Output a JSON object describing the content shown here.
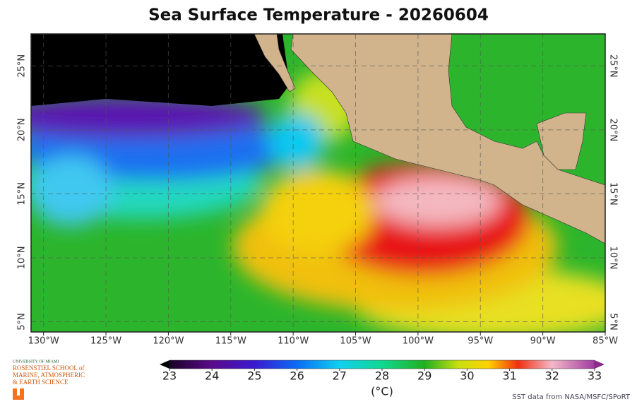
{
  "map": {
    "title": "Sea Surface Temperature - 20260604",
    "xlim": [
      -131,
      -85
    ],
    "ylim": [
      4.2,
      27.5
    ],
    "lon_ticks": [
      {
        "value": -130,
        "label": "130°W"
      },
      {
        "value": -125,
        "label": "125°W"
      },
      {
        "value": -120,
        "label": "120°W"
      },
      {
        "value": -115,
        "label": "115°W"
      },
      {
        "value": -110,
        "label": "110°W"
      },
      {
        "value": -105,
        "label": "105°W"
      },
      {
        "value": -100,
        "label": "100°W"
      },
      {
        "value": -95,
        "label": "95°W"
      },
      {
        "value": -90,
        "label": "90°W"
      },
      {
        "value": -85,
        "label": "85°W"
      }
    ],
    "lat_ticks": [
      {
        "value": 5,
        "label": "5°N"
      },
      {
        "value": 10,
        "label": "10°N"
      },
      {
        "value": 15,
        "label": "15°N"
      },
      {
        "value": 20,
        "label": "20°N"
      },
      {
        "value": 25,
        "label": "25°N"
      }
    ],
    "colorbar": {
      "range": [
        23,
        33
      ],
      "ticks": [
        23,
        24,
        25,
        26,
        27,
        28,
        29,
        30,
        31,
        32,
        33
      ],
      "unit": "(°C)"
    },
    "credit": "SST data from NASA/MSFC/SPoRT",
    "logo": [
      "UNIVERSITY OF MIAMI",
      "ROSENSTIEL SCHOOL of",
      "MARINE, ATMOSPHERIC",
      "& EARTH SCIENCE"
    ]
  }
}
